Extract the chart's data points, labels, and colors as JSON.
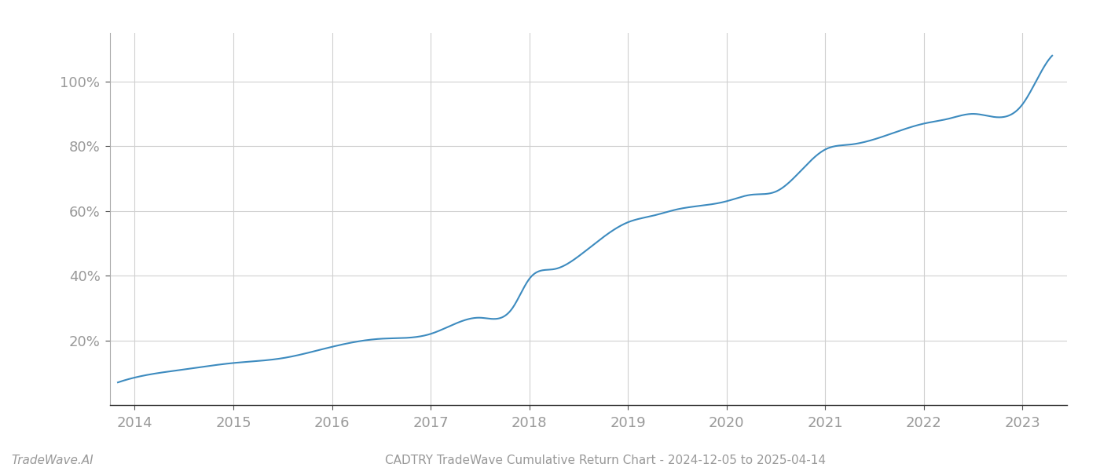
{
  "title": "CADTRY TradeWave Cumulative Return Chart - 2024-12-05 to 2025-04-14",
  "watermark": "TradeWave.AI",
  "line_color": "#3d8bbf",
  "line_width": 1.5,
  "background_color": "#ffffff",
  "grid_color": "#d0d0d0",
  "tick_color": "#999999",
  "x_start_year": 2013.75,
  "x_end_year": 2023.45,
  "x_ticks": [
    2014,
    2015,
    2016,
    2017,
    2018,
    2019,
    2020,
    2021,
    2022,
    2023
  ],
  "y_ticks": [
    20,
    40,
    60,
    80,
    100
  ],
  "ylim": [
    0,
    115
  ],
  "data_x": [
    2013.83,
    2014.0,
    2014.5,
    2015.0,
    2015.5,
    2016.0,
    2016.5,
    2017.0,
    2017.5,
    2017.83,
    2018.0,
    2018.25,
    2018.5,
    2019.0,
    2019.25,
    2019.5,
    2020.0,
    2020.25,
    2020.5,
    2021.0,
    2021.25,
    2022.0,
    2022.25,
    2022.5,
    2023.0,
    2023.17,
    2023.3
  ],
  "data_y": [
    7.0,
    8.5,
    11.0,
    13.0,
    14.5,
    18.0,
    20.5,
    22.0,
    27.0,
    30.0,
    39.0,
    42.0,
    46.0,
    56.5,
    58.5,
    60.5,
    63.0,
    65.0,
    66.0,
    79.0,
    80.5,
    87.0,
    88.5,
    90.0,
    93.0,
    102.0,
    108.0
  ]
}
